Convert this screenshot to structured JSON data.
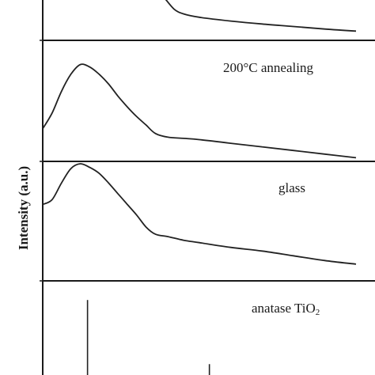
{
  "chart_data": {
    "type": "line",
    "ylabel": "Intensity (a.u.)",
    "xlabel": "",
    "panels": [
      {
        "label": "",
        "series": [
          {
            "x": [
              0.39,
              0.42,
              0.45,
              0.5,
              0.6,
              0.7,
              0.8,
              0.9,
              1.0
            ],
            "y": [
              1.0,
              0.74,
              0.63,
              0.55,
              0.46,
              0.39,
              0.33,
              0.27,
              0.22
            ]
          }
        ]
      },
      {
        "label": "200°C annealing",
        "series": [
          {
            "x": [
              0.0,
              0.03,
              0.06,
              0.09,
              0.12,
              0.15,
              0.18,
              0.21,
              0.24,
              0.27,
              0.3,
              0.33,
              0.36,
              0.4,
              0.45,
              0.5,
              0.6,
              0.7,
              0.8,
              0.9,
              1.0
            ],
            "y": [
              0.27,
              0.4,
              0.58,
              0.72,
              0.8,
              0.78,
              0.72,
              0.64,
              0.54,
              0.45,
              0.37,
              0.3,
              0.23,
              0.2,
              0.19,
              0.18,
              0.15,
              0.12,
              0.09,
              0.06,
              0.03
            ]
          }
        ]
      },
      {
        "label": "glass",
        "series": [
          {
            "x": [
              0.0,
              0.03,
              0.06,
              0.09,
              0.12,
              0.15,
              0.18,
              0.21,
              0.24,
              0.27,
              0.3,
              0.33,
              0.36,
              0.4,
              0.45,
              0.5,
              0.6,
              0.7,
              0.8,
              0.9,
              1.0
            ],
            "y": [
              0.64,
              0.68,
              0.82,
              0.94,
              0.98,
              0.95,
              0.9,
              0.82,
              0.73,
              0.64,
              0.55,
              0.45,
              0.39,
              0.37,
              0.34,
              0.32,
              0.28,
              0.25,
              0.21,
              0.17,
              0.14
            ]
          }
        ]
      },
      {
        "label": "anatase TiO",
        "label_sub": "2",
        "peaks": [
          {
            "x": 0.143,
            "height": 0.8
          },
          {
            "x": 0.532,
            "height": 0.13
          }
        ]
      }
    ]
  }
}
